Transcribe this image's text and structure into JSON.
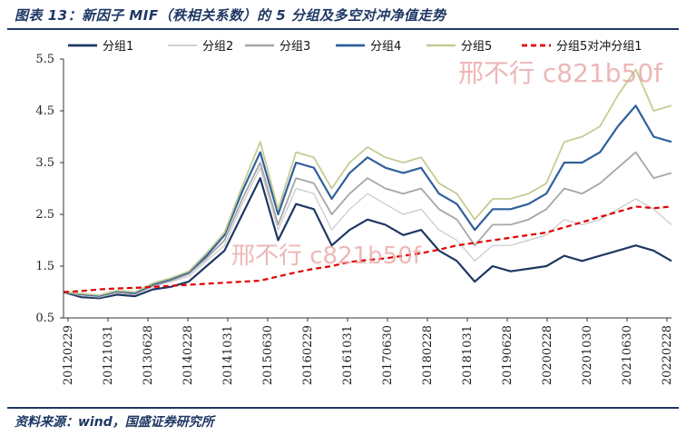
{
  "header": {
    "title": "图表 13：新因子 MIF（秩相关系数）的 5 分组及多空对冲净值走势"
  },
  "footer": {
    "source": "资料来源：wind，国盛证券研究所"
  },
  "watermark": {
    "text": "邢不行 c821b50f"
  },
  "chart_data": {
    "type": "line",
    "title": "",
    "xlabel": "",
    "ylabel": "",
    "ylim": [
      0.5,
      5.5
    ],
    "yticks": [
      "0.5",
      "1.5",
      "2.5",
      "3.5",
      "4.5",
      "5.5"
    ],
    "xticks": [
      "20120229",
      "20121031",
      "20130628",
      "20140228",
      "20141031",
      "20150630",
      "20160229",
      "20161031",
      "20170630",
      "20180228",
      "20181031",
      "20190628",
      "20200228",
      "20201030",
      "20210630",
      "20220228"
    ],
    "legend_position": "top",
    "x": [
      "2012-02",
      "2012-06",
      "2012-10",
      "2013-02",
      "2013-06",
      "2013-10",
      "2014-02",
      "2014-06",
      "2014-10",
      "2015-02",
      "2015-04",
      "2015-06",
      "2015-08",
      "2015-10",
      "2015-12",
      "2016-02",
      "2016-06",
      "2016-10",
      "2017-02",
      "2017-06",
      "2017-10",
      "2018-02",
      "2018-06",
      "2018-10",
      "2019-02",
      "2019-06",
      "2019-10",
      "2020-02",
      "2020-06",
      "2020-10",
      "2021-02",
      "2021-06",
      "2021-10",
      "2022-02",
      "2022-04"
    ],
    "series": [
      {
        "name": "分组1",
        "color": "#1f3864",
        "dash": "",
        "width": 2.2,
        "values": [
          1.0,
          0.9,
          0.88,
          0.95,
          0.92,
          1.05,
          1.1,
          1.2,
          1.5,
          1.8,
          2.5,
          3.2,
          2.0,
          2.7,
          2.6,
          1.9,
          2.2,
          2.4,
          2.3,
          2.1,
          2.2,
          1.8,
          1.6,
          1.2,
          1.5,
          1.4,
          1.45,
          1.5,
          1.7,
          1.6,
          1.7,
          1.8,
          1.9,
          1.8,
          1.6
        ]
      },
      {
        "name": "分组2",
        "color": "#c9c9c9",
        "dash": "",
        "width": 1.2,
        "values": [
          1.0,
          0.93,
          0.9,
          0.98,
          0.95,
          1.1,
          1.2,
          1.3,
          1.6,
          1.9,
          2.7,
          3.4,
          2.2,
          3.0,
          2.9,
          2.2,
          2.6,
          2.9,
          2.7,
          2.5,
          2.6,
          2.2,
          2.0,
          1.6,
          1.9,
          1.9,
          2.0,
          2.1,
          2.4,
          2.3,
          2.4,
          2.6,
          2.8,
          2.6,
          2.3
        ]
      },
      {
        "name": "分组3",
        "color": "#a6a6a6",
        "dash": "",
        "width": 1.8,
        "values": [
          1.0,
          0.95,
          0.92,
          1.0,
          0.97,
          1.12,
          1.22,
          1.35,
          1.65,
          2.0,
          2.8,
          3.5,
          2.3,
          3.2,
          3.1,
          2.5,
          2.9,
          3.2,
          3.0,
          2.9,
          3.0,
          2.6,
          2.4,
          1.9,
          2.3,
          2.3,
          2.4,
          2.6,
          3.0,
          2.9,
          3.1,
          3.4,
          3.7,
          3.2,
          3.3
        ]
      },
      {
        "name": "分组4",
        "color": "#2f5f9a",
        "dash": "",
        "width": 2.2,
        "values": [
          1.0,
          0.96,
          0.93,
          1.02,
          0.98,
          1.15,
          1.25,
          1.38,
          1.7,
          2.1,
          2.95,
          3.7,
          2.5,
          3.5,
          3.4,
          2.8,
          3.3,
          3.6,
          3.4,
          3.3,
          3.4,
          2.9,
          2.7,
          2.2,
          2.6,
          2.6,
          2.7,
          2.9,
          3.5,
          3.5,
          3.7,
          4.2,
          4.6,
          4.0,
          3.9
        ]
      },
      {
        "name": "分组5",
        "color": "#c4cc94",
        "dash": "",
        "width": 1.8,
        "values": [
          1.0,
          0.97,
          0.94,
          1.03,
          1.0,
          1.17,
          1.27,
          1.4,
          1.75,
          2.15,
          3.05,
          3.9,
          2.6,
          3.7,
          3.6,
          3.0,
          3.5,
          3.8,
          3.6,
          3.5,
          3.6,
          3.1,
          2.9,
          2.4,
          2.8,
          2.8,
          2.9,
          3.1,
          3.9,
          4.0,
          4.2,
          4.8,
          5.3,
          4.5,
          4.6
        ]
      },
      {
        "name": "分组5对冲分组1",
        "color": "#e00000",
        "dash": "6,4",
        "width": 2.2,
        "values": [
          1.0,
          1.02,
          1.05,
          1.07,
          1.08,
          1.1,
          1.12,
          1.14,
          1.16,
          1.18,
          1.2,
          1.22,
          1.3,
          1.38,
          1.45,
          1.5,
          1.58,
          1.62,
          1.65,
          1.7,
          1.75,
          1.82,
          1.9,
          1.95,
          2.0,
          2.05,
          2.1,
          2.15,
          2.25,
          2.35,
          2.45,
          2.55,
          2.65,
          2.62,
          2.65
        ]
      }
    ]
  }
}
